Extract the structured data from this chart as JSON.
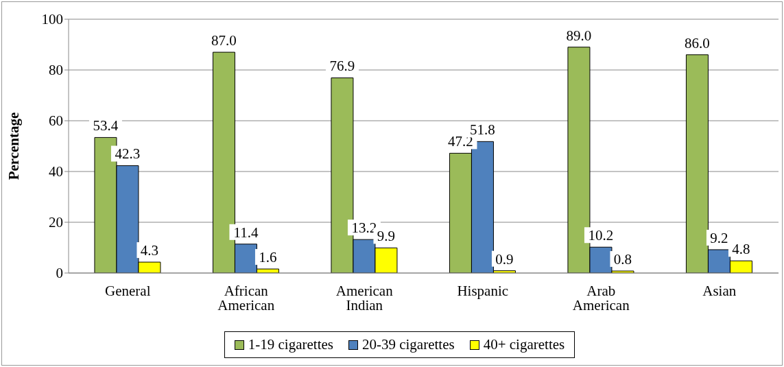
{
  "chart_data": {
    "type": "bar",
    "ylabel": "Percentage",
    "categories": [
      "General",
      "African American",
      "American Indian",
      "Hispanic",
      "Arab American",
      "Asian"
    ],
    "series": [
      {
        "name": "1-19 cigarettes",
        "color": "#9bbb59",
        "values": [
          53.4,
          87.0,
          76.9,
          47.2,
          89.0,
          86.0
        ],
        "value_labels": [
          "53.4",
          "87.0",
          "76.9",
          "47.2",
          "89.0",
          "86.0"
        ]
      },
      {
        "name": "20-39 cigarettes",
        "color": "#4f81bd",
        "values": [
          42.3,
          11.4,
          13.2,
          51.8,
          10.2,
          9.2
        ],
        "value_labels": [
          "42.3",
          "11.4",
          "13.2",
          "51.8",
          "10.2",
          "9.2"
        ]
      },
      {
        "name": "40+ cigarettes",
        "color": "#ffff00",
        "values": [
          4.3,
          1.6,
          9.9,
          0.9,
          0.8,
          4.8
        ],
        "value_labels": [
          "4.3",
          "1.6",
          "9.9",
          "0.9",
          "0.8",
          "4.8"
        ]
      }
    ],
    "ylim": [
      0,
      100
    ],
    "yticks": [
      0,
      20,
      40,
      60,
      80,
      100
    ],
    "grid": "y",
    "legend": "bottom"
  }
}
